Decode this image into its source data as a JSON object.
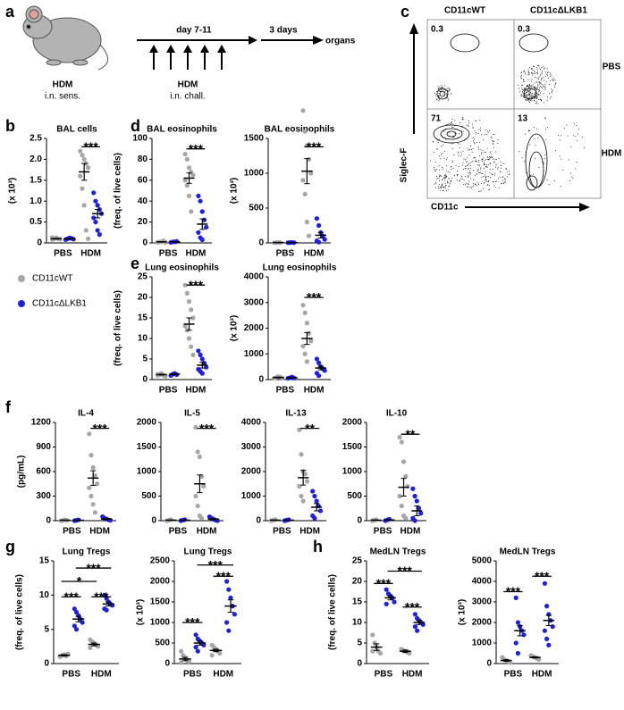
{
  "panel_labels": [
    "a",
    "b",
    "c",
    "d",
    "e",
    "f",
    "g",
    "h"
  ],
  "schematic": {
    "sens_label": "HDM",
    "sens_route": "i.n. sens.",
    "period": "day 7-11",
    "chall_label": "HDM",
    "chall_route": "i.n. chall.",
    "wait": "3 days",
    "end": "organs"
  },
  "flow": {
    "columns": [
      "CD11cWT",
      "CD11cΔLKB1"
    ],
    "rows": [
      "PBS",
      "HDM"
    ],
    "percentages": [
      [
        0.3,
        0.3
      ],
      [
        71,
        13
      ]
    ],
    "x_label": "CD11c",
    "y_label": "Siglec-F"
  },
  "chart_data": [
    {
      "type": "dot",
      "title": "BAL cells",
      "y_label": "(x 10³)",
      "categories": [
        "PBS",
        "HDM"
      ],
      "ylim": [
        0,
        2.5
      ],
      "yticks": [
        0,
        0.5,
        {
          "value": 1,
          "label": "1.0"
        },
        1.5,
        {
          "value": 2,
          "label": "2.0"
        },
        2.5
      ],
      "annotations": [
        "***"
      ],
      "series": [
        {
          "name": "CD11cWT",
          "color": "#a6a6a6",
          "values": [
            0.1,
            1.7
          ],
          "errors": [
            0.01,
            0.2
          ],
          "points": [
            [
              0.08,
              0.1,
              0.12,
              0.1,
              0.09,
              0.13
            ],
            [
              2.2,
              2.1,
              2.0,
              1.9,
              1.8,
              1.6,
              1.3,
              0.9,
              0.3,
              0.1
            ]
          ]
        },
        {
          "name": "CD11cΔLKB1",
          "color": "#1f1fe0",
          "values": [
            0.1,
            0.7
          ],
          "errors": [
            0.01,
            0.1
          ],
          "points": [
            [
              0.08,
              0.1,
              0.12,
              0.11,
              0.09
            ],
            [
              1.2,
              1.0,
              0.9,
              0.8,
              0.7,
              0.6,
              0.5,
              0.3,
              0.2
            ]
          ]
        }
      ]
    },
    {
      "type": "dot",
      "title": "BAL eosinophils",
      "y_label": "(freq. of live cells)",
      "categories": [
        "PBS",
        "HDM"
      ],
      "ylim": [
        0,
        100
      ],
      "yticks": [
        0,
        20,
        40,
        60,
        80,
        100
      ],
      "annotations": [
        "***"
      ],
      "series": [
        {
          "color": "#a6a6a6",
          "values": [
            1,
            62
          ],
          "errors": [
            0.2,
            5
          ],
          "points": [
            [
              0.5,
              1,
              1,
              2,
              0.5
            ],
            [
              85,
              80,
              72,
              68,
              65,
              60,
              55,
              45,
              30
            ]
          ]
        },
        {
          "color": "#1f1fe0",
          "values": [
            1,
            18
          ],
          "errors": [
            0.2,
            5
          ],
          "points": [
            [
              0.5,
              1,
              1,
              1.5
            ],
            [
              45,
              40,
              30,
              22,
              15,
              10,
              5,
              3
            ]
          ]
        }
      ]
    },
    {
      "type": "dot",
      "title": "BAL eosinophils",
      "y_label": "(x 10³)",
      "categories": [
        "PBS",
        "HDM"
      ],
      "ylim": [
        0,
        1500
      ],
      "yticks": [
        0,
        500,
        1000,
        1500
      ],
      "annotations": [
        "***"
      ],
      "series": [
        {
          "color": "#a6a6a6",
          "values": [
            5,
            1030
          ],
          "errors": [
            1,
            180
          ],
          "points": [
            [
              2,
              5,
              8,
              5
            ],
            [
              1900,
              1600,
              1400,
              1200,
              1000,
              900,
              700,
              300,
              100
            ]
          ]
        },
        {
          "color": "#1f1fe0",
          "values": [
            5,
            110
          ],
          "errors": [
            1,
            40
          ],
          "points": [
            [
              3,
              5,
              6,
              4
            ],
            [
              350,
              250,
              150,
              100,
              50,
              30,
              10
            ]
          ]
        }
      ]
    },
    {
      "type": "dot",
      "title": "Lung eosinophils",
      "y_label": "(freq. of live cells)",
      "categories": [
        "PBS",
        "HDM"
      ],
      "ylim": [
        0,
        25
      ],
      "yticks": [
        0,
        5,
        10,
        15,
        20,
        25
      ],
      "annotations": [
        "***"
      ],
      "series": [
        {
          "color": "#a6a6a6",
          "values": [
            1.2,
            13.5
          ],
          "errors": [
            0.1,
            1.5
          ],
          "points": [
            [
              1,
              1.2,
              1.5,
              1,
              0.8,
              1.3
            ],
            [
              23,
              21,
              19,
              17,
              15,
              13,
              12,
              10,
              8,
              6
            ]
          ]
        },
        {
          "color": "#1f1fe0",
          "values": [
            1.3,
            3.5
          ],
          "errors": [
            0.1,
            0.7
          ],
          "points": [
            [
              1,
              1.3,
              1.5,
              1.2
            ],
            [
              7,
              6,
              5,
              4,
              3,
              2.5,
              2,
              1.5
            ]
          ]
        }
      ]
    },
    {
      "type": "dot",
      "title": "Lung eosinophils",
      "y_label": "(x 10³)",
      "categories": [
        "PBS",
        "HDM"
      ],
      "ylim": [
        0,
        4000
      ],
      "yticks": [
        0,
        1000,
        2000,
        3000,
        4000
      ],
      "annotations": [
        "***"
      ],
      "series": [
        {
          "color": "#a6a6a6",
          "values": [
            80,
            1600
          ],
          "errors": [
            15,
            230
          ],
          "points": [
            [
              50,
              80,
              120,
              100,
              60
            ],
            [
              2900,
              2600,
              2200,
              1800,
              1500,
              1300,
              1000,
              700
            ]
          ]
        },
        {
          "color": "#1f1fe0",
          "values": [
            70,
            450
          ],
          "errors": [
            10,
            70
          ],
          "points": [
            [
              50,
              70,
              100,
              60
            ],
            [
              800,
              650,
              500,
              420,
              350,
              250,
              150
            ]
          ]
        }
      ]
    },
    {
      "type": "dot",
      "title": "IL-4",
      "y_label": "(pg/mL)",
      "categories": [
        "PBS",
        "HDM"
      ],
      "ylim": [
        0,
        1200
      ],
      "yticks": [
        0,
        300,
        600,
        900,
        1200
      ],
      "annotations": [
        "***"
      ],
      "series": [
        {
          "color": "#a6a6a6",
          "values": [
            5,
            520
          ],
          "errors": [
            2,
            90
          ],
          "points": [
            [
              0,
              5,
              10,
              5
            ],
            [
              1060,
              800,
              650,
              550,
              450,
              400,
              300,
              200,
              100
            ]
          ]
        },
        {
          "color": "#1f1fe0",
          "values": [
            5,
            20
          ],
          "errors": [
            2,
            8
          ],
          "points": [
            [
              0,
              5,
              10
            ],
            [
              50,
              30,
              20,
              10,
              5
            ]
          ]
        }
      ]
    },
    {
      "type": "dot",
      "title": "IL-5",
      "categories": [
        "PBS",
        "HDM"
      ],
      "ylim": [
        0,
        2000
      ],
      "yticks": [
        0,
        500,
        1000,
        1500,
        2000
      ],
      "annotations": [
        "***"
      ],
      "series": [
        {
          "color": "#a6a6a6",
          "values": [
            10,
            750
          ],
          "errors": [
            4,
            180
          ],
          "points": [
            [
              0,
              10,
              20
            ],
            [
              1900,
              1400,
              1300,
              900,
              700,
              500,
              300,
              100,
              50
            ]
          ]
        },
        {
          "color": "#1f1fe0",
          "values": [
            10,
            30
          ],
          "errors": [
            4,
            12
          ],
          "points": [
            [
              0,
              10,
              20
            ],
            [
              80,
              50,
              30,
              10,
              0
            ]
          ]
        }
      ]
    },
    {
      "type": "dot",
      "title": "IL-13",
      "categories": [
        "PBS",
        "HDM"
      ],
      "ylim": [
        0,
        4000
      ],
      "yticks": [
        0,
        1000,
        2000,
        3000,
        4000
      ],
      "annotations": [
        "**"
      ],
      "series": [
        {
          "color": "#a6a6a6",
          "values": [
            20,
            1750
          ],
          "errors": [
            8,
            300
          ],
          "points": [
            [
              0,
              20,
              40
            ],
            [
              3700,
              2700,
              2000,
              1900,
              1600,
              1400,
              1000,
              800
            ]
          ]
        },
        {
          "color": "#1f1fe0",
          "values": [
            20,
            550
          ],
          "errors": [
            8,
            150
          ],
          "points": [
            [
              0,
              20,
              40
            ],
            [
              1200,
              1000,
              800,
              600,
              400,
              200,
              100
            ]
          ]
        }
      ]
    },
    {
      "type": "dot",
      "title": "IL-10",
      "categories": [
        "PBS",
        "HDM"
      ],
      "ylim": [
        0,
        2000
      ],
      "yticks": [
        0,
        500,
        1000,
        1500,
        2000
      ],
      "annotations": [
        "**"
      ],
      "series": [
        {
          "color": "#a6a6a6",
          "values": [
            10,
            680
          ],
          "errors": [
            4,
            180
          ],
          "points": [
            [
              0,
              10,
              20
            ],
            [
              1700,
              1600,
              1200,
              900,
              700,
              500,
              300,
              100,
              50
            ]
          ]
        },
        {
          "color": "#1f1fe0",
          "values": [
            15,
            200
          ],
          "errors": [
            6,
            100
          ],
          "points": [
            [
              0,
              15,
              30
            ],
            [
              650,
              500,
              400,
              250,
              150,
              50,
              0
            ]
          ]
        }
      ]
    },
    {
      "type": "dot",
      "title": "Lung Tregs",
      "y_label": "(freq. of live cells)",
      "categories": [
        "PBS",
        "HDM"
      ],
      "ylim": [
        0,
        15
      ],
      "yticks": [
        0,
        5,
        10,
        15
      ],
      "annotations": [
        "***",
        "***",
        "*",
        "***"
      ],
      "series": [
        {
          "color": "#a6a6a6",
          "values": [
            1.2,
            2.8
          ],
          "errors": [
            0.1,
            0.2
          ],
          "points": [
            [
              1,
              1.2,
              1.3,
              1.1,
              1.4,
              1
            ],
            [
              3.5,
              3.2,
              3,
              2.7,
              2.5,
              2.3
            ]
          ]
        },
        {
          "color": "#1f1fe0",
          "values": [
            6.5,
            8.7
          ],
          "errors": [
            0.4,
            0.3
          ],
          "points": [
            [
              8,
              7.5,
              7,
              6.5,
              6,
              5.5,
              5
            ],
            [
              10,
              9.5,
              9,
              8.7,
              8.5,
              8,
              7.8
            ]
          ]
        }
      ]
    },
    {
      "type": "dot",
      "title": "Lung Tregs",
      "y_label": "(x 10³)",
      "categories": [
        "PBS",
        "HDM"
      ],
      "ylim": [
        0,
        2500
      ],
      "yticks": [
        0,
        500,
        1000,
        1500,
        2000,
        2500
      ],
      "annotations": [
        "***",
        "***",
        "***"
      ],
      "series": [
        {
          "color": "#a6a6a6",
          "values": [
            110,
            320
          ],
          "errors": [
            40,
            30
          ],
          "points": [
            [
              300,
              200,
              150,
              80,
              50,
              20
            ],
            [
              450,
              400,
              350,
              300,
              250,
              200
            ]
          ]
        },
        {
          "color": "#1f1fe0",
          "values": [
            500,
            1400
          ],
          "errors": [
            50,
            150
          ],
          "points": [
            [
              700,
              600,
              550,
              500,
              450,
              400,
              300
            ],
            [
              2000,
              1800,
              1600,
              1400,
              1200,
              1000,
              800
            ]
          ]
        }
      ]
    },
    {
      "type": "dot",
      "title": "MedLN Tregs",
      "y_label": "(freq. of live cells)",
      "categories": [
        "PBS",
        "HDM"
      ],
      "ylim": [
        0,
        25
      ],
      "yticks": [
        0,
        5,
        10,
        15,
        20,
        25
      ],
      "annotations": [
        "***",
        "***",
        "***"
      ],
      "series": [
        {
          "color": "#a6a6a6",
          "values": [
            4,
            3
          ],
          "errors": [
            0.8,
            0.3
          ],
          "points": [
            [
              7,
              5,
              4,
              3,
              2.5,
              3
            ],
            [
              3.5,
              3.2,
              3,
              2.8,
              2.5
            ]
          ]
        },
        {
          "color": "#1f1fe0",
          "values": [
            16,
            10
          ],
          "errors": [
            0.5,
            0.5
          ],
          "points": [
            [
              18,
              17,
              16.5,
              16,
              15,
              14.5
            ],
            [
              12,
              11,
              10.5,
              10,
              9.5,
              9,
              8
            ]
          ]
        }
      ]
    },
    {
      "type": "dot",
      "title": "MedLN Tregs",
      "y_label": "(x 10³)",
      "categories": [
        "PBS",
        "HDM"
      ],
      "ylim": [
        0,
        5000
      ],
      "yticks": [
        0,
        1000,
        2000,
        3000,
        4000,
        5000
      ],
      "annotations": [
        "***",
        "***"
      ],
      "series": [
        {
          "color": "#a6a6a6",
          "values": [
            150,
            300
          ],
          "errors": [
            40,
            30
          ],
          "points": [
            [
              300,
              200,
              150,
              100,
              50
            ],
            [
              400,
              350,
              300,
              250,
              200
            ]
          ]
        },
        {
          "color": "#1f1fe0",
          "values": [
            1600,
            2100
          ],
          "errors": [
            250,
            250
          ],
          "points": [
            [
              3200,
              2000,
              1800,
              1600,
              1400,
              1000,
              500
            ],
            [
              3900,
              2800,
              2400,
              2100,
              1800,
              1600,
              1200,
              900
            ]
          ]
        }
      ]
    }
  ]
}
